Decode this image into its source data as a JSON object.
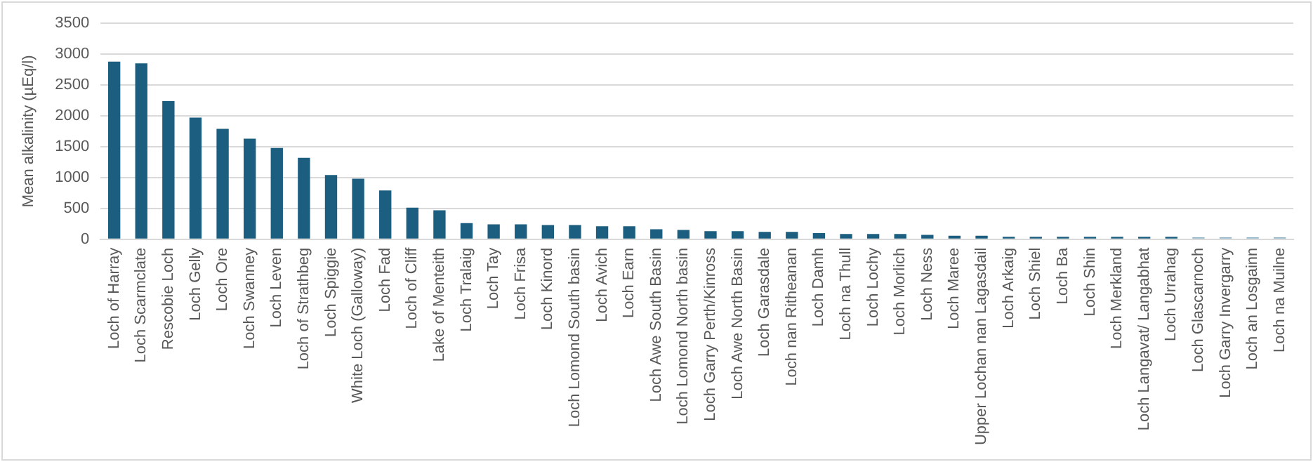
{
  "chart_data": {
    "type": "bar",
    "ylabel": "Mean alkalinity (µEq/l)",
    "categories": [
      "Loch of Harray",
      "Loch Scarmclate",
      "Rescobie Loch",
      "Loch Gelly",
      "Loch Ore",
      "Loch Swanney",
      "Loch Leven",
      "Loch of Strathbeg",
      "Loch Spiggie",
      "White Loch (Galloway)",
      "Loch Fad",
      "Loch of Cliff",
      "Lake of Menteith",
      "Loch Tralaig",
      "Loch Tay",
      "Loch Frisa",
      "Loch Kinord",
      "Loch Lomond South basin",
      "Loch Avich",
      "Loch Earn",
      "Loch Awe South Basin",
      "Loch Lomond North basin",
      "Loch Garry Perth/Kinross",
      "Loch Awe North Basin",
      "Loch Garasdale",
      "Loch nan Ritheanan",
      "Loch Damh",
      "Loch na Thull",
      "Loch Lochy",
      "Loch Morlich",
      "Loch Ness",
      "Loch Maree",
      "Upper Lochan nan Lagasdail",
      "Loch Arkaig",
      "Loch Shiel",
      "Loch Ba",
      "Loch Shin",
      "Loch Merkland",
      "Loch Langavat/ Langabhat",
      "Loch Urrahag",
      "Loch Glascarnoch",
      "Loch Garry Invergarry",
      "Loch an Losgainn",
      "Loch na Muilne"
    ],
    "values": [
      2880,
      2850,
      2240,
      1970,
      1790,
      1630,
      1480,
      1320,
      1040,
      980,
      790,
      510,
      470,
      260,
      240,
      240,
      230,
      230,
      210,
      210,
      160,
      150,
      130,
      130,
      120,
      120,
      100,
      85,
      85,
      85,
      70,
      55,
      55,
      40,
      40,
      40,
      40,
      40,
      40,
      40,
      30,
      30,
      30,
      30
    ],
    "colors": [
      "#1b5e80",
      "#1b5e80",
      "#1b5e80",
      "#1b5e80",
      "#1b5e80",
      "#1b5e80",
      "#1b5e80",
      "#1b5e80",
      "#1b5e80",
      "#1b5e80",
      "#1b5e80",
      "#1b5e80",
      "#1b5e80",
      "#1b5e80",
      "#1b5e80",
      "#1b5e80",
      "#1b5e80",
      "#1b5e80",
      "#1b5e80",
      "#1b5e80",
      "#1b5e80",
      "#1b5e80",
      "#1b5e80",
      "#1b5e80",
      "#1b5e80",
      "#1b5e80",
      "#1b5e80",
      "#1b5e80",
      "#1b5e80",
      "#1b5e80",
      "#1b5e80",
      "#1b5e80",
      "#1b5e80",
      "#1b5e80",
      "#1b5e80",
      "#1b5e80",
      "#1b5e80",
      "#1b5e80",
      "#1b5e80",
      "#1b5e80",
      "#8fb3c6",
      "#8fb3c6",
      "#8fb3c6",
      "#8fb3c6"
    ],
    "ylim": [
      0,
      3500
    ],
    "yticks": [
      0,
      500,
      1000,
      1500,
      2000,
      2500,
      3000,
      3500
    ],
    "grid": "y",
    "legend": false
  }
}
